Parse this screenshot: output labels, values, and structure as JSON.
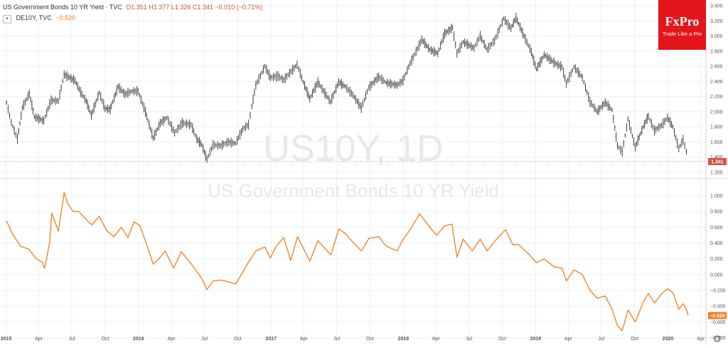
{
  "legend": {
    "main_title": "US Government Bonds 10 YR Yield · TVC",
    "ohlc": "O1.351  H1.377  L1.326  C1.341  −0.010 (−0.71%)",
    "sub_label": "DE10Y, TVC",
    "sub_value": "−0.520"
  },
  "watermark": {
    "line1": "US10Y, 1D",
    "line2": "US Government Bonds 10 YR Yield"
  },
  "logo": {
    "name": "FxPro",
    "tagline": "Trade Like a Pro"
  },
  "colors": {
    "us10y": "#2b2b2b",
    "de10y": "#f57c1f",
    "us_tag": "#d8503c",
    "de_tag": "#f57c1f",
    "grid": "#eef0f3",
    "axis_text": "#555555",
    "watermark": "#e6e8ea",
    "logo_bg": "#e3161c"
  },
  "icons": {
    "settings": "gear-icon",
    "collapse": "chevron-icon"
  },
  "chart_data": {
    "type": "line",
    "x_axis": {
      "ticks": [
        "2015",
        "Apr",
        "Jul",
        "Oct",
        "2016",
        "Apr",
        "Jul",
        "Oct",
        "2017",
        "Apr",
        "Jul",
        "Oct",
        "2018",
        "Apr",
        "Jul",
        "Oct",
        "2019",
        "Apr",
        "Jul",
        "Oct",
        "2020",
        "Apr"
      ],
      "tick_dates": [
        "2015-01-01",
        "2015-04-01",
        "2015-07-01",
        "2015-10-01",
        "2016-01-01",
        "2016-04-01",
        "2016-07-01",
        "2016-10-01",
        "2017-01-01",
        "2017-04-01",
        "2017-07-01",
        "2017-10-01",
        "2018-01-01",
        "2018-04-01",
        "2018-07-01",
        "2018-10-01",
        "2019-01-01",
        "2019-04-01",
        "2019-07-01",
        "2019-10-01",
        "2020-01-01",
        "2020-04-01"
      ],
      "range": [
        "2014-12-15",
        "2020-04-15"
      ]
    },
    "panels": [
      {
        "series": "US10Y",
        "style": "ohlc-bars",
        "y_ticks": [
          "3.400",
          "3.200",
          "3.000",
          "2.800",
          "2.600",
          "2.400",
          "2.200",
          "2.000",
          "1.800",
          "1.600",
          "1.400",
          "1.200"
        ],
        "ylim": [
          1.2,
          3.4
        ],
        "last_value_label": "1.341",
        "points": [
          [
            "2015-01-02",
            2.12
          ],
          [
            "2015-01-15",
            1.86
          ],
          [
            "2015-02-01",
            1.64
          ],
          [
            "2015-02-15",
            2.05
          ],
          [
            "2015-03-06",
            2.24
          ],
          [
            "2015-03-20",
            1.93
          ],
          [
            "2015-04-15",
            1.88
          ],
          [
            "2015-05-05",
            2.15
          ],
          [
            "2015-05-25",
            2.14
          ],
          [
            "2015-06-10",
            2.49
          ],
          [
            "2015-06-25",
            2.45
          ],
          [
            "2015-07-10",
            2.41
          ],
          [
            "2015-07-25",
            2.26
          ],
          [
            "2015-08-10",
            2.14
          ],
          [
            "2015-08-24",
            1.95
          ],
          [
            "2015-09-15",
            2.25
          ],
          [
            "2015-10-01",
            2.04
          ],
          [
            "2015-10-15",
            2.03
          ],
          [
            "2015-11-06",
            2.33
          ],
          [
            "2015-11-25",
            2.23
          ],
          [
            "2015-12-15",
            2.27
          ],
          [
            "2015-12-31",
            2.27
          ],
          [
            "2016-01-20",
            2.0
          ],
          [
            "2016-02-11",
            1.65
          ],
          [
            "2016-03-01",
            1.85
          ],
          [
            "2016-03-20",
            1.92
          ],
          [
            "2016-04-10",
            1.72
          ],
          [
            "2016-05-01",
            1.85
          ],
          [
            "2016-05-25",
            1.83
          ],
          [
            "2016-06-10",
            1.64
          ],
          [
            "2016-06-24",
            1.56
          ],
          [
            "2016-07-08",
            1.37
          ],
          [
            "2016-07-25",
            1.56
          ],
          [
            "2016-08-15",
            1.55
          ],
          [
            "2016-09-05",
            1.6
          ],
          [
            "2016-09-25",
            1.58
          ],
          [
            "2016-10-15",
            1.77
          ],
          [
            "2016-10-31",
            1.83
          ],
          [
            "2016-11-09",
            2.07
          ],
          [
            "2016-11-20",
            2.35
          ],
          [
            "2016-12-15",
            2.6
          ],
          [
            "2016-12-30",
            2.45
          ],
          [
            "2017-01-20",
            2.47
          ],
          [
            "2017-02-05",
            2.42
          ],
          [
            "2017-03-14",
            2.62
          ],
          [
            "2017-03-31",
            2.39
          ],
          [
            "2017-04-18",
            2.17
          ],
          [
            "2017-05-10",
            2.39
          ],
          [
            "2017-06-14",
            2.13
          ],
          [
            "2017-07-07",
            2.39
          ],
          [
            "2017-07-25",
            2.33
          ],
          [
            "2017-08-15",
            2.22
          ],
          [
            "2017-09-07",
            2.05
          ],
          [
            "2017-09-28",
            2.32
          ],
          [
            "2017-10-25",
            2.46
          ],
          [
            "2017-11-15",
            2.38
          ],
          [
            "2017-12-15",
            2.35
          ],
          [
            "2017-12-31",
            2.41
          ],
          [
            "2018-01-20",
            2.64
          ],
          [
            "2018-02-21",
            2.95
          ],
          [
            "2018-03-15",
            2.82
          ],
          [
            "2018-04-06",
            2.77
          ],
          [
            "2018-04-25",
            3.03
          ],
          [
            "2018-05-17",
            3.11
          ],
          [
            "2018-05-29",
            2.77
          ],
          [
            "2018-06-15",
            2.92
          ],
          [
            "2018-07-15",
            2.84
          ],
          [
            "2018-08-01",
            3.0
          ],
          [
            "2018-08-20",
            2.82
          ],
          [
            "2018-09-10",
            2.94
          ],
          [
            "2018-10-05",
            3.23
          ],
          [
            "2018-10-25",
            3.1
          ],
          [
            "2018-11-08",
            3.24
          ],
          [
            "2018-11-30",
            3.0
          ],
          [
            "2018-12-20",
            2.79
          ],
          [
            "2019-01-03",
            2.56
          ],
          [
            "2019-01-25",
            2.75
          ],
          [
            "2019-02-20",
            2.65
          ],
          [
            "2019-03-15",
            2.59
          ],
          [
            "2019-03-27",
            2.37
          ],
          [
            "2019-04-17",
            2.59
          ],
          [
            "2019-05-10",
            2.45
          ],
          [
            "2019-05-31",
            2.13
          ],
          [
            "2019-06-20",
            2.0
          ],
          [
            "2019-07-12",
            2.12
          ],
          [
            "2019-07-31",
            2.02
          ],
          [
            "2019-08-15",
            1.55
          ],
          [
            "2019-08-28",
            1.47
          ],
          [
            "2019-09-13",
            1.9
          ],
          [
            "2019-10-03",
            1.53
          ],
          [
            "2019-10-25",
            1.8
          ],
          [
            "2019-11-08",
            1.94
          ],
          [
            "2019-11-25",
            1.75
          ],
          [
            "2019-12-15",
            1.82
          ],
          [
            "2019-12-31",
            1.92
          ],
          [
            "2020-01-15",
            1.8
          ],
          [
            "2020-01-31",
            1.51
          ],
          [
            "2020-02-12",
            1.63
          ],
          [
            "2020-02-21",
            1.47
          ],
          [
            "2020-02-26",
            1.34
          ]
        ]
      },
      {
        "series": "DE10Y",
        "style": "line",
        "y_ticks": [
          "1.000",
          "0.800",
          "0.600",
          "0.400",
          "0.200",
          "0.000",
          "−0.200",
          "−0.400",
          "−0.600",
          "−0.800"
        ],
        "ylim": [
          -0.85,
          1.1
        ],
        "last_value_label": "−0.520",
        "points": [
          [
            "2015-01-02",
            0.68
          ],
          [
            "2015-01-20",
            0.5
          ],
          [
            "2015-02-10",
            0.36
          ],
          [
            "2015-03-05",
            0.32
          ],
          [
            "2015-03-25",
            0.2
          ],
          [
            "2015-04-10",
            0.16
          ],
          [
            "2015-04-17",
            0.08
          ],
          [
            "2015-05-01",
            0.4
          ],
          [
            "2015-05-07",
            0.78
          ],
          [
            "2015-05-25",
            0.55
          ],
          [
            "2015-06-10",
            1.04
          ],
          [
            "2015-06-20",
            0.9
          ],
          [
            "2015-07-05",
            0.8
          ],
          [
            "2015-07-20",
            0.8
          ],
          [
            "2015-08-10",
            0.7
          ],
          [
            "2015-08-25",
            0.63
          ],
          [
            "2015-09-15",
            0.74
          ],
          [
            "2015-10-05",
            0.56
          ],
          [
            "2015-10-25",
            0.48
          ],
          [
            "2015-11-15",
            0.6
          ],
          [
            "2015-12-03",
            0.47
          ],
          [
            "2015-12-20",
            0.67
          ],
          [
            "2016-01-05",
            0.62
          ],
          [
            "2016-01-20",
            0.43
          ],
          [
            "2016-02-11",
            0.13
          ],
          [
            "2016-03-01",
            0.22
          ],
          [
            "2016-03-15",
            0.3
          ],
          [
            "2016-04-07",
            0.08
          ],
          [
            "2016-04-28",
            0.29
          ],
          [
            "2016-05-20",
            0.17
          ],
          [
            "2016-06-10",
            0.04
          ],
          [
            "2016-06-24",
            -0.05
          ],
          [
            "2016-07-08",
            -0.19
          ],
          [
            "2016-07-25",
            -0.08
          ],
          [
            "2016-08-15",
            -0.07
          ],
          [
            "2016-09-05",
            -0.09
          ],
          [
            "2016-09-25",
            -0.12
          ],
          [
            "2016-10-15",
            0.03
          ],
          [
            "2016-10-31",
            0.16
          ],
          [
            "2016-11-20",
            0.3
          ],
          [
            "2016-12-15",
            0.35
          ],
          [
            "2016-12-30",
            0.21
          ],
          [
            "2017-01-15",
            0.36
          ],
          [
            "2017-02-05",
            0.47
          ],
          [
            "2017-02-24",
            0.18
          ],
          [
            "2017-03-15",
            0.48
          ],
          [
            "2017-04-18",
            0.17
          ],
          [
            "2017-05-10",
            0.43
          ],
          [
            "2017-06-15",
            0.25
          ],
          [
            "2017-07-07",
            0.58
          ],
          [
            "2017-07-25",
            0.52
          ],
          [
            "2017-08-15",
            0.41
          ],
          [
            "2017-09-08",
            0.3
          ],
          [
            "2017-09-28",
            0.46
          ],
          [
            "2017-10-25",
            0.48
          ],
          [
            "2017-11-15",
            0.36
          ],
          [
            "2017-12-15",
            0.3
          ],
          [
            "2017-12-29",
            0.43
          ],
          [
            "2018-01-20",
            0.57
          ],
          [
            "2018-02-15",
            0.77
          ],
          [
            "2018-03-15",
            0.6
          ],
          [
            "2018-04-03",
            0.5
          ],
          [
            "2018-04-25",
            0.62
          ],
          [
            "2018-05-15",
            0.64
          ],
          [
            "2018-05-29",
            0.22
          ],
          [
            "2018-06-15",
            0.45
          ],
          [
            "2018-07-10",
            0.3
          ],
          [
            "2018-08-01",
            0.45
          ],
          [
            "2018-08-20",
            0.3
          ],
          [
            "2018-09-15",
            0.45
          ],
          [
            "2018-10-10",
            0.57
          ],
          [
            "2018-10-30",
            0.38
          ],
          [
            "2018-11-15",
            0.38
          ],
          [
            "2018-12-15",
            0.25
          ],
          [
            "2019-01-03",
            0.15
          ],
          [
            "2019-01-25",
            0.2
          ],
          [
            "2019-02-20",
            0.1
          ],
          [
            "2019-03-15",
            0.08
          ],
          [
            "2019-03-27",
            -0.08
          ],
          [
            "2019-04-17",
            0.06
          ],
          [
            "2019-05-10",
            0.0
          ],
          [
            "2019-05-31",
            -0.2
          ],
          [
            "2019-06-20",
            -0.3
          ],
          [
            "2019-07-12",
            -0.27
          ],
          [
            "2019-07-31",
            -0.44
          ],
          [
            "2019-08-15",
            -0.65
          ],
          [
            "2019-08-28",
            -0.71
          ],
          [
            "2019-09-13",
            -0.45
          ],
          [
            "2019-10-03",
            -0.6
          ],
          [
            "2019-10-25",
            -0.35
          ],
          [
            "2019-11-08",
            -0.24
          ],
          [
            "2019-11-25",
            -0.36
          ],
          [
            "2019-12-15",
            -0.24
          ],
          [
            "2019-12-31",
            -0.18
          ],
          [
            "2020-01-15",
            -0.23
          ],
          [
            "2020-01-31",
            -0.44
          ],
          [
            "2020-02-12",
            -0.37
          ],
          [
            "2020-02-21",
            -0.44
          ],
          [
            "2020-02-26",
            -0.52
          ]
        ]
      }
    ]
  }
}
